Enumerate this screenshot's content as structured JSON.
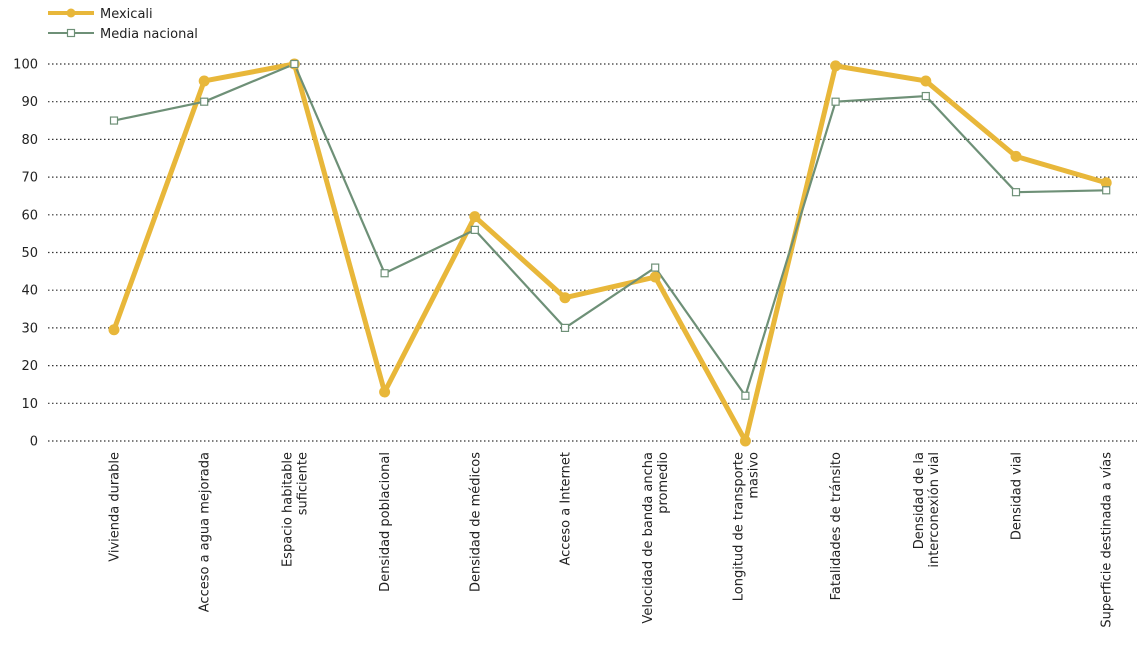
{
  "chart_data": {
    "type": "line",
    "title": "",
    "xlabel": "",
    "ylabel": "",
    "ylim": [
      0,
      100
    ],
    "yticks": [
      0,
      10,
      20,
      30,
      40,
      50,
      60,
      70,
      80,
      90,
      100
    ],
    "grid": "horizontal dotted",
    "legend_position": "top-left",
    "categories": [
      [
        "Vivienda durable"
      ],
      [
        "Acceso a agua mejorada"
      ],
      [
        "Espacio habitable",
        "suficiente"
      ],
      [
        "Densidad poblacional"
      ],
      [
        "Densidad de médicos"
      ],
      [
        "Acceso a Internet"
      ],
      [
        "Velocidad de banda ancha",
        "promedio"
      ],
      [
        "Longitud de transporte",
        "masivo"
      ],
      [
        "Fatalidades de tránsito"
      ],
      [
        "Densidad de la",
        "interconexión vial"
      ],
      [
        "Densidad vial"
      ],
      [
        "Superficie destinada a vías"
      ]
    ],
    "series": [
      {
        "name": "Mexicali",
        "color": "#E8B73A",
        "marker": "filled-circle",
        "values": [
          29.5,
          95.5,
          100,
          13,
          59.5,
          38,
          43.5,
          0,
          99.5,
          95.5,
          75.5,
          68.5
        ]
      },
      {
        "name": "Media nacional",
        "color": "#6E9077",
        "marker": "hollow-square",
        "values": [
          85,
          90,
          100,
          44.5,
          56,
          30,
          46,
          12,
          90,
          91.5,
          66,
          66.5
        ]
      }
    ]
  }
}
